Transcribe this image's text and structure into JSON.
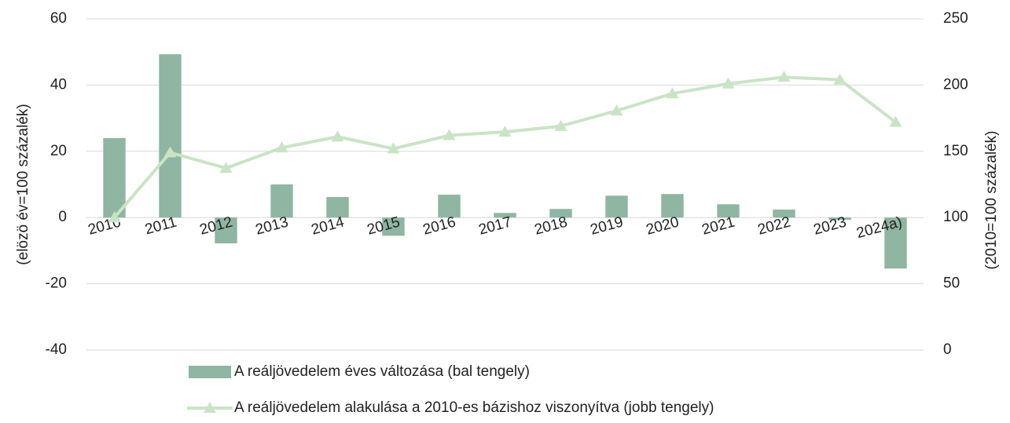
{
  "chart_data": {
    "type": "bar_line",
    "categories": [
      "2010",
      "2011",
      "2012",
      "2013",
      "2014",
      "2015",
      "2016",
      "2017",
      "2018",
      "2019",
      "2020",
      "2021",
      "2022",
      "2023",
      "2024a)"
    ],
    "series": [
      {
        "name": "A reáljövedelem éves változása (bal tengely)",
        "type": "bar",
        "color": "#8fb5a3",
        "values": [
          24,
          49.3,
          -7.8,
          10,
          6.2,
          -5.5,
          6.9,
          1.4,
          2.6,
          6.6,
          7.1,
          4,
          2.4,
          -0.7,
          -15.4
        ]
      },
      {
        "name": "A reáljövedelem alakulása a 2010-es bázishoz viszonyítva (jobb tengely)",
        "type": "line",
        "axis": "y2",
        "color": "#c9e4c5",
        "values": [
          100,
          149,
          137.3,
          152.7,
          161,
          152,
          162,
          164.6,
          169,
          180.6,
          193.6,
          201,
          206,
          204,
          172
        ]
      }
    ],
    "ylabel": "(elözö év=100 százalék)",
    "y2label": "(2010=100 százalék)",
    "ylim": [
      -40,
      60
    ],
    "yticks": [
      -40,
      -20,
      0,
      20,
      40,
      60
    ],
    "y2lim": [
      0,
      250
    ],
    "y2ticks": [
      0,
      50,
      100,
      150,
      200,
      250
    ],
    "grid": true,
    "legend": "bottom"
  }
}
